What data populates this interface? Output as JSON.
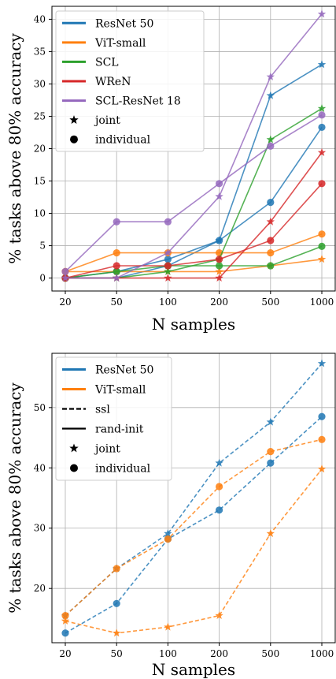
{
  "chart_data": [
    {
      "type": "line",
      "xlabel": "N samples",
      "ylabel": "% tasks above 80% accuracy",
      "x": [
        "20",
        "50",
        "100",
        "200",
        "500",
        "1000"
      ],
      "ylim": [
        -2,
        42
      ],
      "yticks": [
        0,
        5,
        10,
        15,
        20,
        25,
        30,
        35,
        40
      ],
      "grid": true,
      "legend_position": "top-left",
      "legend": [
        "ResNet 50",
        "ViT-small",
        "SCL",
        "WReN",
        "SCL-ResNet 18",
        "joint",
        "individual"
      ],
      "series": [
        {
          "name": "ResNet 50",
          "mode": "joint",
          "color": "#1f77b4",
          "values": [
            0,
            0,
            1.9,
            5.8,
            28.2,
            33.0
          ]
        },
        {
          "name": "ResNet 50",
          "mode": "individual",
          "color": "#1f77b4",
          "values": [
            0,
            1.0,
            2.9,
            5.8,
            11.7,
            23.3
          ]
        },
        {
          "name": "ViT-small",
          "mode": "joint",
          "color": "#ff7f0e",
          "values": [
            1.0,
            1.0,
            1.0,
            1.0,
            1.9,
            2.9
          ]
        },
        {
          "name": "ViT-small",
          "mode": "individual",
          "color": "#ff7f0e",
          "values": [
            1.0,
            3.9,
            3.9,
            3.9,
            3.9,
            6.8
          ]
        },
        {
          "name": "SCL",
          "mode": "joint",
          "color": "#2ca02c",
          "values": [
            0,
            0,
            1.0,
            2.9,
            21.4,
            26.2
          ]
        },
        {
          "name": "SCL",
          "mode": "individual",
          "color": "#2ca02c",
          "values": [
            0,
            1.0,
            1.9,
            1.9,
            1.9,
            4.9
          ]
        },
        {
          "name": "WReN",
          "mode": "joint",
          "color": "#d62728",
          "values": [
            0,
            0,
            0,
            0,
            8.7,
            19.4
          ]
        },
        {
          "name": "WReN",
          "mode": "individual",
          "color": "#d62728",
          "values": [
            0,
            1.9,
            1.9,
            2.9,
            5.8,
            14.6
          ]
        },
        {
          "name": "SCL-ResNet 18",
          "mode": "joint",
          "color": "#9467bd",
          "values": [
            0,
            0,
            3.9,
            12.6,
            31.1,
            40.8
          ]
        },
        {
          "name": "SCL-ResNet 18",
          "mode": "individual",
          "color": "#9467bd",
          "values": [
            1.0,
            8.7,
            8.7,
            14.6,
            20.4,
            25.2
          ]
        }
      ]
    },
    {
      "type": "line",
      "xlabel": "N samples",
      "ylabel": "% tasks above 80% accuracy",
      "x": [
        "20",
        "50",
        "100",
        "200",
        "500",
        "1000"
      ],
      "ylim": [
        11,
        59
      ],
      "yticks": [
        20,
        30,
        40,
        50
      ],
      "grid": true,
      "legend_position": "top-left",
      "legend": [
        "ResNet 50",
        "ViT-small",
        "ssl",
        "rand-init",
        "joint",
        "individual"
      ],
      "series": [
        {
          "name": "ResNet 50",
          "mode": "joint",
          "init": "ssl",
          "color": "#1f77b4",
          "values": [
            15.5,
            23.3,
            29.1,
            40.8,
            47.6,
            57.3
          ]
        },
        {
          "name": "ResNet 50",
          "mode": "individual",
          "init": "ssl",
          "color": "#1f77b4",
          "values": [
            12.6,
            17.5,
            28.2,
            33.0,
            40.8,
            48.5
          ]
        },
        {
          "name": "ViT-small",
          "mode": "joint",
          "init": "ssl",
          "color": "#ff7f0e",
          "values": [
            14.6,
            12.6,
            13.6,
            15.5,
            29.1,
            39.8
          ]
        },
        {
          "name": "ViT-small",
          "mode": "individual",
          "init": "ssl",
          "color": "#ff7f0e",
          "values": [
            15.5,
            23.3,
            28.2,
            36.9,
            42.7,
            44.7
          ]
        }
      ]
    }
  ]
}
